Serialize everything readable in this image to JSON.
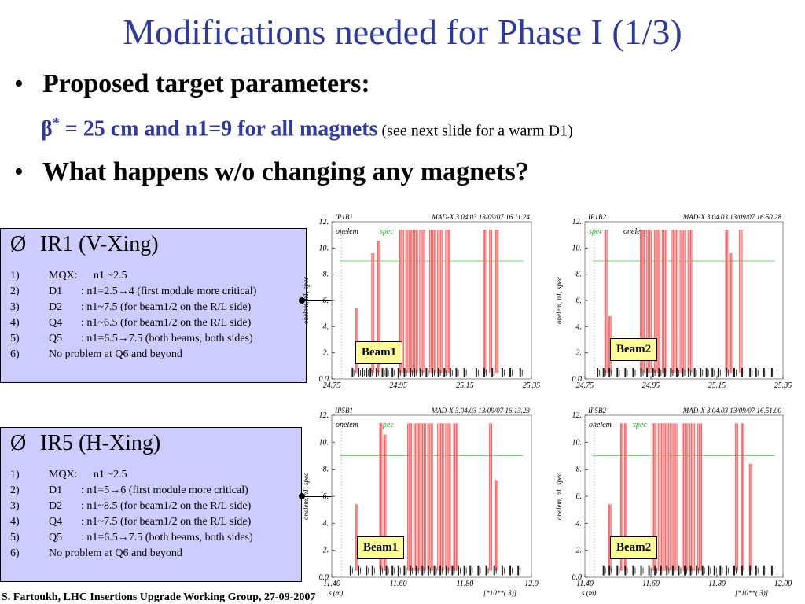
{
  "slide": {
    "title": "Modifications needed for Phase I (1/3)",
    "bullets": [
      {
        "marker": "•",
        "text": "Proposed target parameters:"
      },
      {
        "marker": "•",
        "text": "What happens w/o changing any magnets?"
      }
    ],
    "beta_line": {
      "symbol": "β",
      "superscript": "*",
      "main": " = 25 cm and n1=9 for all magnets",
      "note": " (see next slide for a warm D1)"
    },
    "footer": "S. Fartoukh, LHC Insertions Upgrade Working Group, 27-09-2007"
  },
  "boxes": [
    {
      "marker": "Ø",
      "heading": "IR1 (V-Xing)",
      "items": [
        {
          "num": "1)",
          "key": "MQX:",
          "val": "n1 ~2.5"
        },
        {
          "num": "2)",
          "key": "D1",
          "val": ": n1=2.5→4 (first module more critical)"
        },
        {
          "num": "3)",
          "key": "D2",
          "val": ": n1~7.5 (for beam1/2 on the R/L side)"
        },
        {
          "num": "4)",
          "key": "Q4",
          "val": ": n1~6.5 (for beam1/2 on the R/L side)"
        },
        {
          "num": "5)",
          "key": "Q5",
          "val": ": n1=6.5→7.5 (both beams, both sides)"
        },
        {
          "num": "6)",
          "key": "No problem at Q6 and beyond",
          "val": ""
        }
      ]
    },
    {
      "marker": "Ø",
      "heading": "IR5 (H-Xing)",
      "items": [
        {
          "num": "1)",
          "key": "MQX:",
          "val": "n1 ~2.5"
        },
        {
          "num": "2)",
          "key": "D1",
          "val": ": n1=5→6 (first module more critical)"
        },
        {
          "num": "3)",
          "key": "D2",
          "val": ": n1~8.5 (for beam1/2 on the R/L side)"
        },
        {
          "num": "4)",
          "key": "Q4",
          "val": ": n1~7.5 (for beam1/2 on the R/L side)"
        },
        {
          "num": "5)",
          "key": "Q5",
          "val": ": n1=6.5→7.5 (both beams, both sides)"
        },
        {
          "num": "6)",
          "key": "No problem at Q6 and beyond",
          "val": ""
        }
      ]
    }
  ],
  "plots": [
    {
      "id": "IP1B1",
      "header_left": "IP1B1",
      "header_right": "MAD-X 3.04.03   13/09/07 16.11.24",
      "ylabel": "onelem, n1, spec",
      "legend": [
        {
          "text": "onelem",
          "color": "#000000"
        },
        {
          "text": "spec",
          "color": "#22aa22"
        }
      ],
      "beam_label": "Beam1",
      "y_ticks": [
        "0.0",
        "2.",
        "4.",
        "6.",
        "8.",
        "10.",
        "12."
      ],
      "x_ticks": [
        "24.75",
        "24.95",
        "25.15",
        "25.35"
      ],
      "x_label": "",
      "x_unit": "",
      "xlim": [
        24.75,
        25.35
      ],
      "ylim": [
        0,
        12
      ],
      "spec_level": 9
    },
    {
      "id": "IP1B2",
      "header_left": "IP1B2",
      "header_right": "MAD-X 3.04.03   13/09/07 16.50.28",
      "ylabel": "onelem, n1, spec",
      "legend": [
        {
          "text": "spec",
          "color": "#22aa22"
        },
        {
          "text": "onelem",
          "color": "#000000"
        }
      ],
      "beam_label": "Beam2",
      "y_ticks": [
        "0.0",
        "2.",
        "4.",
        "6.",
        "8.",
        "10.",
        "12."
      ],
      "x_ticks": [
        "24.75",
        "24.95",
        "25.15",
        "25.35"
      ],
      "x_label": "",
      "x_unit": "",
      "xlim": [
        24.75,
        25.35
      ],
      "ylim": [
        0,
        12
      ],
      "spec_level": 9
    },
    {
      "id": "IP5B1",
      "header_left": "IP5B1",
      "header_right": "MAD-X 3.04.03   13/09/07 16.13.23",
      "ylabel": "onelem, n1, spec",
      "legend": [
        {
          "text": "onelem",
          "color": "#000000"
        },
        {
          "text": "spec",
          "color": "#22aa22"
        }
      ],
      "beam_label": "Beam1",
      "y_ticks": [
        "0.0",
        "2.",
        "4.",
        "6.",
        "8.",
        "10.",
        "12."
      ],
      "x_ticks": [
        "11.40",
        "11.60",
        "11.80",
        "12.0"
      ],
      "x_label": "s (m)",
      "x_unit": "[*10**( 3)]",
      "xlim": [
        11.4,
        12.0
      ],
      "ylim": [
        0,
        12
      ],
      "spec_level": 9
    },
    {
      "id": "IP5B2",
      "header_left": "IP5B2",
      "header_right": "MAD-X 3.04.03   13/09/07 16.51.00",
      "ylabel": "onelem, n1, spec",
      "legend": [
        {
          "text": "onelem",
          "color": "#000000"
        },
        {
          "text": "spec",
          "color": "#22aa22"
        }
      ],
      "beam_label": "Beam2",
      "y_ticks": [
        "0.0",
        "2.",
        "4.",
        "6.",
        "8.",
        "10.",
        "12."
      ],
      "x_ticks": [
        "11.40",
        "11.60",
        "11.80",
        "12.00"
      ],
      "x_label": "s (m)",
      "x_unit": "[*10**( 3)]",
      "xlim": [
        11.4,
        12.0
      ],
      "ylim": [
        0,
        12
      ],
      "spec_level": 9
    }
  ],
  "colors": {
    "title": "#2f3a9e",
    "box_fill": "#ccccff",
    "beam_label_fill": "#ffff99",
    "aperture_curve": "#ee4444",
    "aperture_fill": "#ffaaaa",
    "spec_line": "#66dd66"
  }
}
